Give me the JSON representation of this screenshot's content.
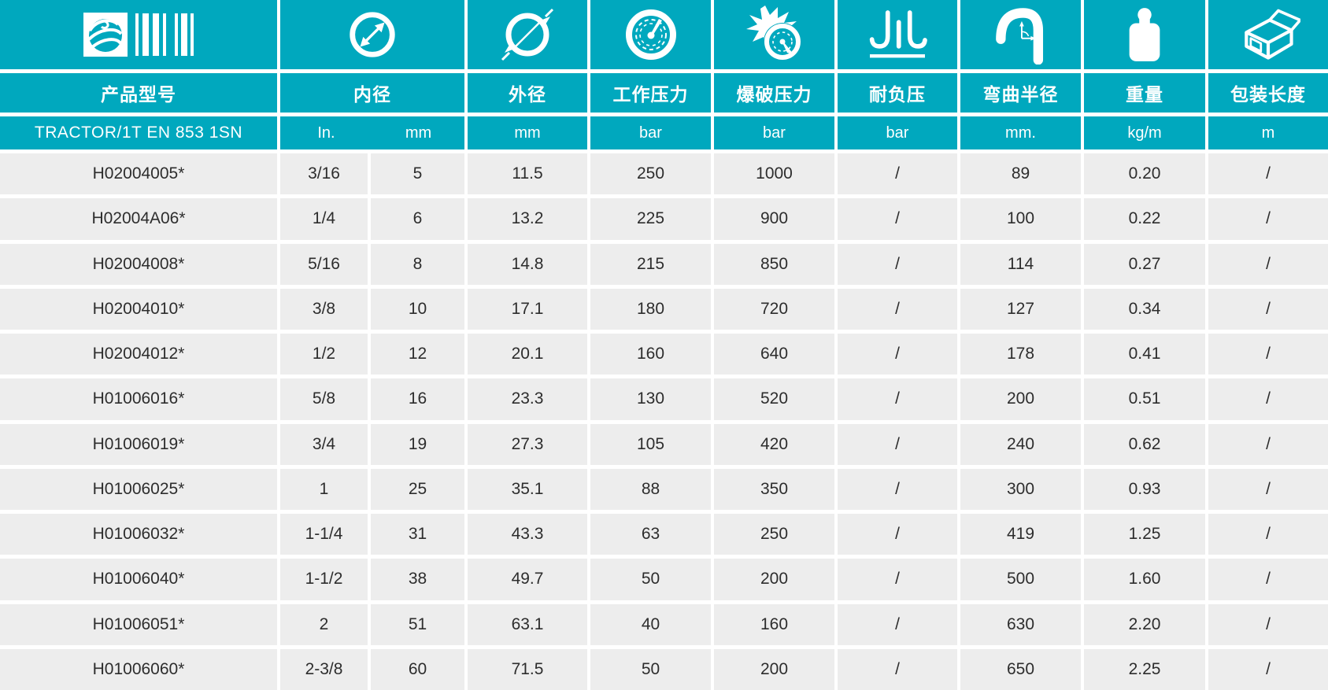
{
  "colors": {
    "accent": "#00a8be",
    "row_bg": "#ededed",
    "gap": "#ffffff",
    "text": "#2d2d2d"
  },
  "header": {
    "product_col": {
      "label": "产品型号",
      "series": "TRACTOR/1T EN 853 1SN",
      "icon": "logo-barcode-icon"
    },
    "cols": [
      {
        "label": "内径",
        "icon": "inner-diameter-icon",
        "unit_in": "In.",
        "unit_mm": "mm"
      },
      {
        "label": "外径",
        "icon": "outer-diameter-icon",
        "unit": "mm"
      },
      {
        "label": "工作压力",
        "icon": "working-pressure-icon",
        "unit": "bar"
      },
      {
        "label": "爆破压力",
        "icon": "burst-pressure-icon",
        "unit": "bar"
      },
      {
        "label": "耐负压",
        "icon": "vacuum-resistance-icon",
        "unit": "bar"
      },
      {
        "label": "弯曲半径",
        "icon": "bend-radius-icon",
        "unit": "mm."
      },
      {
        "label": "重量",
        "icon": "weight-icon",
        "unit": "kg/m"
      },
      {
        "label": "包装长度",
        "icon": "package-length-icon",
        "unit": "m"
      }
    ]
  },
  "rows": [
    [
      "H02004005*",
      "3/16",
      "5",
      "11.5",
      "250",
      "1000",
      "/",
      "89",
      "0.20",
      "/"
    ],
    [
      "H02004A06*",
      "1/4",
      "6",
      "13.2",
      "225",
      "900",
      "/",
      "100",
      "0.22",
      "/"
    ],
    [
      "H02004008*",
      "5/16",
      "8",
      "14.8",
      "215",
      "850",
      "/",
      "114",
      "0.27",
      "/"
    ],
    [
      "H02004010*",
      "3/8",
      "10",
      "17.1",
      "180",
      "720",
      "/",
      "127",
      "0.34",
      "/"
    ],
    [
      "H02004012*",
      "1/2",
      "12",
      "20.1",
      "160",
      "640",
      "/",
      "178",
      "0.41",
      "/"
    ],
    [
      "H01006016*",
      "5/8",
      "16",
      "23.3",
      "130",
      "520",
      "/",
      "200",
      "0.51",
      "/"
    ],
    [
      "H01006019*",
      "3/4",
      "19",
      "27.3",
      "105",
      "420",
      "/",
      "240",
      "0.62",
      "/"
    ],
    [
      "H01006025*",
      "1",
      "25",
      "35.1",
      "88",
      "350",
      "/",
      "300",
      "0.93",
      "/"
    ],
    [
      "H01006032*",
      "1-1/4",
      "31",
      "43.3",
      "63",
      "250",
      "/",
      "419",
      "1.25",
      "/"
    ],
    [
      "H01006040*",
      "1-1/2",
      "38",
      "49.7",
      "50",
      "200",
      "/",
      "500",
      "1.60",
      "/"
    ],
    [
      "H01006051*",
      "2",
      "51",
      "63.1",
      "40",
      "160",
      "/",
      "630",
      "2.20",
      "/"
    ],
    [
      "H01006060*",
      "2-3/8",
      "60",
      "71.5",
      "50",
      "200",
      "/",
      "650",
      "2.25",
      "/"
    ]
  ]
}
